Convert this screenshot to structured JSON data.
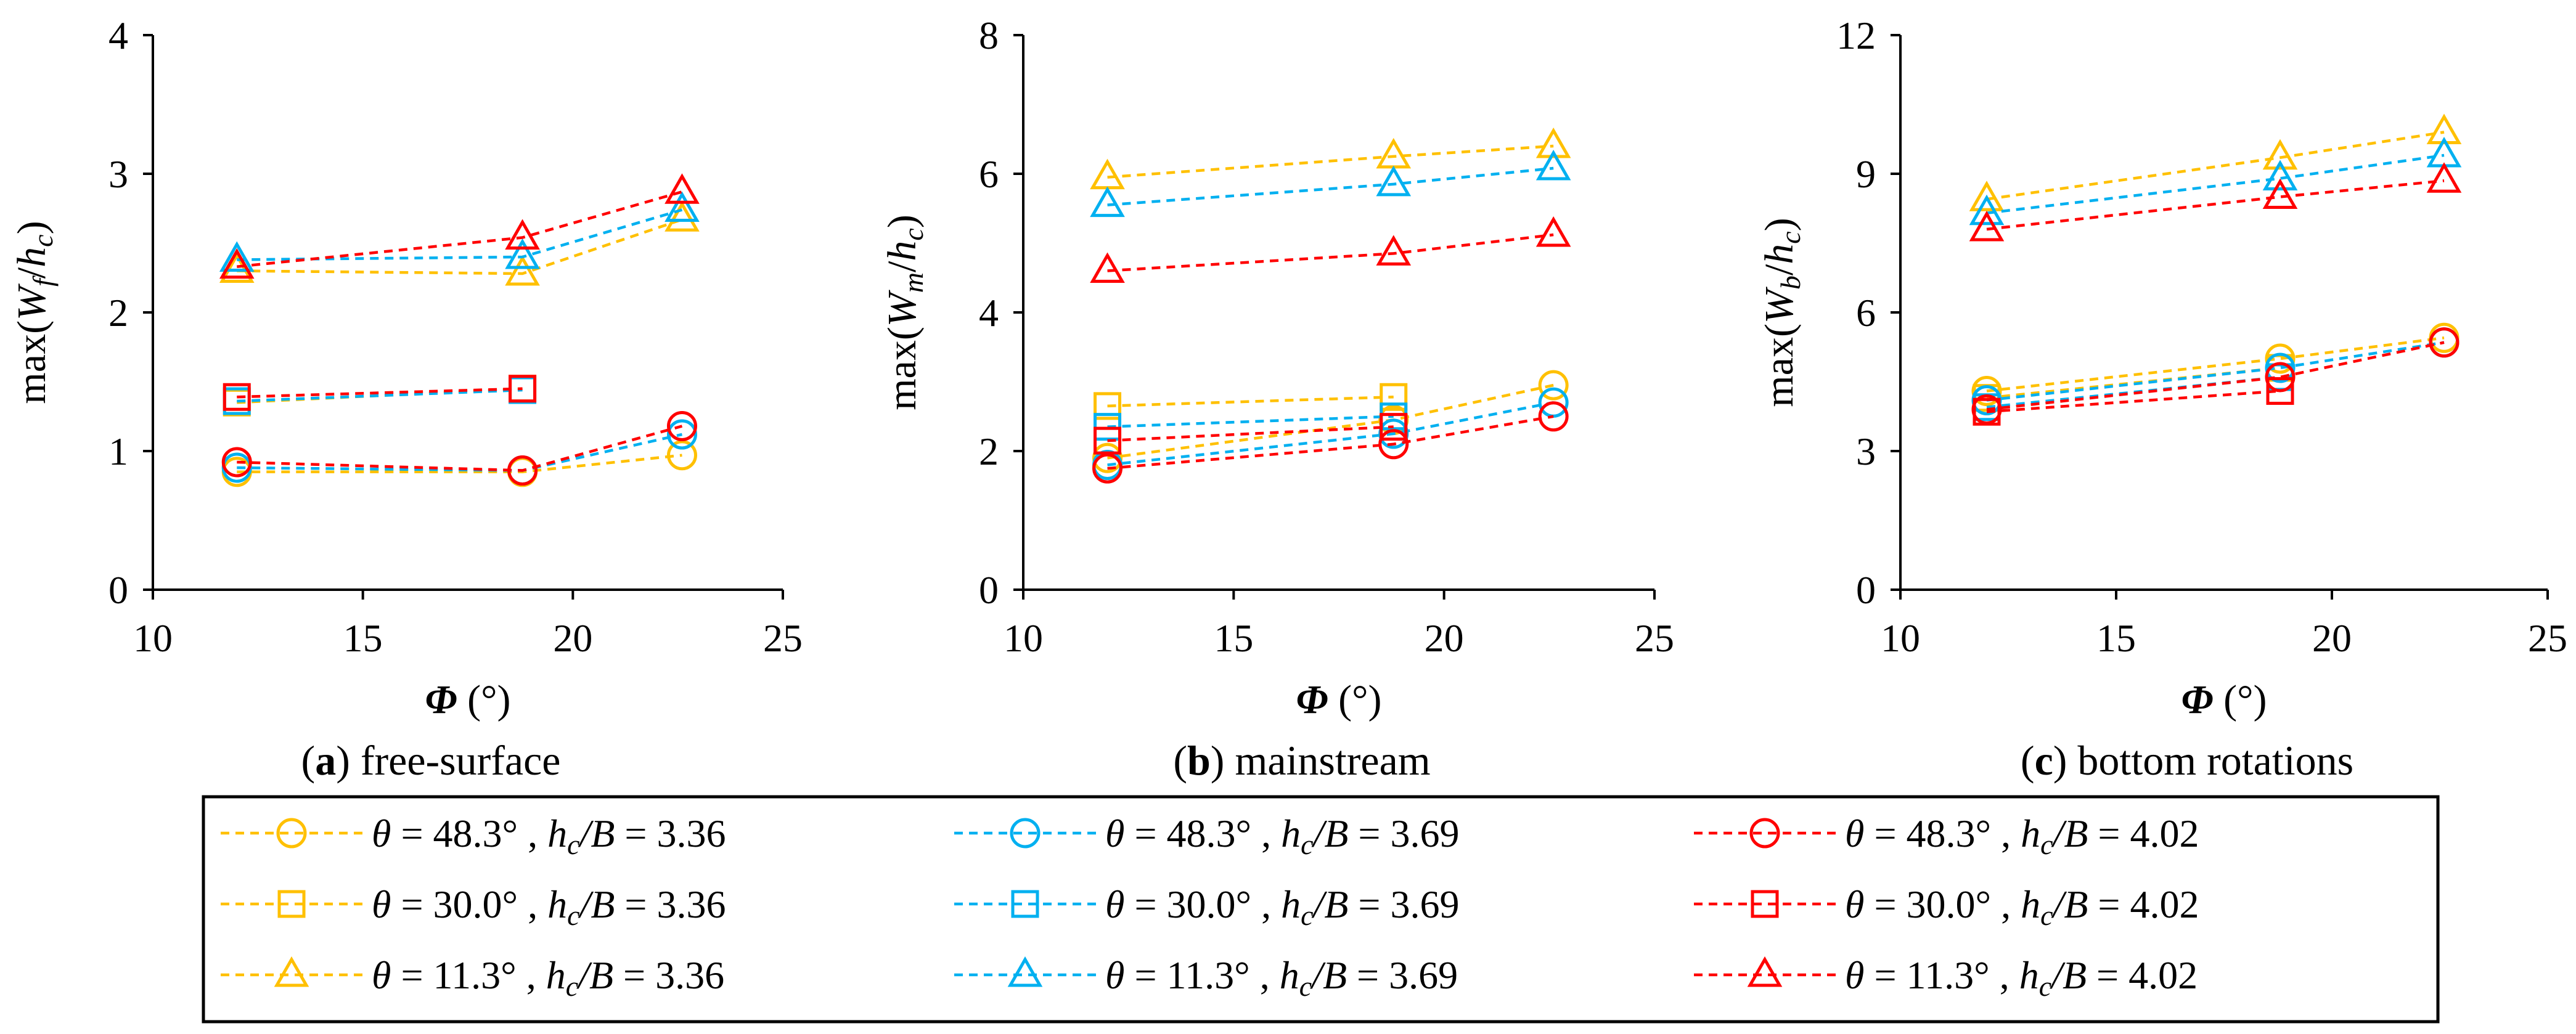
{
  "colors": {
    "yellow": "#FFC000",
    "cyan": "#00B0F0",
    "red": "#FF0000"
  },
  "chart_data": [
    {
      "type": "line",
      "title": "free-surface",
      "caption_letter": "a",
      "caption_text": " free-surface",
      "ylabel": {
        "pre": "max(",
        "v1": "W",
        "sub1": "f",
        "mid": "/",
        "v2": "h",
        "sub2": "c",
        "post": ")"
      },
      "xlabel": {
        "symbol": "Φ",
        "unit": " (°)"
      },
      "xlim": [
        10,
        25
      ],
      "xticks": [
        10,
        15,
        20,
        25
      ],
      "ylim": [
        0,
        4
      ],
      "yticks": [
        0,
        1,
        2,
        3,
        4
      ],
      "x": [
        12,
        18.8,
        22.6
      ],
      "series": [
        {
          "name": "θ = 48.3°, hc/B = 3.36",
          "color": "yellow",
          "marker": "circle",
          "values": [
            0.85,
            0.85,
            0.97
          ]
        },
        {
          "name": "θ = 30.0°, hc/B = 3.36",
          "color": "yellow",
          "marker": "square",
          "values": [
            1.35,
            1.45,
            null
          ]
        },
        {
          "name": "θ = 11.3°, hc/B = 3.36",
          "color": "yellow",
          "marker": "triangle",
          "values": [
            2.3,
            2.28,
            2.67
          ]
        },
        {
          "name": "θ = 48.3°, hc/B = 3.69",
          "color": "cyan",
          "marker": "circle",
          "values": [
            0.88,
            0.86,
            1.12
          ]
        },
        {
          "name": "θ = 30.0°, hc/B = 3.69",
          "color": "cyan",
          "marker": "square",
          "values": [
            1.36,
            1.44,
            null
          ]
        },
        {
          "name": "θ = 11.3°, hc/B = 3.69",
          "color": "cyan",
          "marker": "triangle",
          "values": [
            2.38,
            2.4,
            2.74
          ]
        },
        {
          "name": "θ = 48.3°, hc/B = 4.02",
          "color": "red",
          "marker": "circle",
          "values": [
            0.92,
            0.86,
            1.18
          ]
        },
        {
          "name": "θ = 30.0°, hc/B = 4.02",
          "color": "red",
          "marker": "square",
          "values": [
            1.39,
            1.45,
            null
          ]
        },
        {
          "name": "θ = 11.3°, hc/B = 4.02",
          "color": "red",
          "marker": "triangle",
          "values": [
            2.33,
            2.54,
            2.87
          ]
        }
      ]
    },
    {
      "type": "line",
      "title": "mainstream",
      "caption_letter": "b",
      "caption_text": " mainstream",
      "ylabel": {
        "pre": "max(",
        "v1": "W",
        "sub1": "m",
        "mid": "/",
        "v2": "h",
        "sub2": "c",
        "post": ")"
      },
      "xlabel": {
        "symbol": "Φ",
        "unit": " (°)"
      },
      "xlim": [
        10,
        25
      ],
      "xticks": [
        10,
        15,
        20,
        25
      ],
      "ylim": [
        0,
        8
      ],
      "yticks": [
        0,
        2,
        4,
        6,
        8
      ],
      "x": [
        12,
        18.8,
        22.6
      ],
      "series": [
        {
          "name": "θ = 48.3°, hc/B = 3.36",
          "color": "yellow",
          "marker": "circle",
          "values": [
            1.9,
            2.45,
            2.95
          ]
        },
        {
          "name": "θ = 30.0°, hc/B = 3.36",
          "color": "yellow",
          "marker": "square",
          "values": [
            2.65,
            2.78,
            null
          ]
        },
        {
          "name": "θ = 11.3°, hc/B = 3.36",
          "color": "yellow",
          "marker": "triangle",
          "values": [
            5.95,
            6.25,
            6.4
          ]
        },
        {
          "name": "θ = 48.3°, hc/B = 3.69",
          "color": "cyan",
          "marker": "circle",
          "values": [
            1.8,
            2.25,
            2.7
          ]
        },
        {
          "name": "θ = 30.0°, hc/B = 3.69",
          "color": "cyan",
          "marker": "square",
          "values": [
            2.35,
            2.5,
            null
          ]
        },
        {
          "name": "θ = 11.3°, hc/B = 3.69",
          "color": "cyan",
          "marker": "triangle",
          "values": [
            5.55,
            5.85,
            6.08
          ]
        },
        {
          "name": "θ = 48.3°, hc/B = 4.02",
          "color": "red",
          "marker": "circle",
          "values": [
            1.75,
            2.1,
            2.5
          ]
        },
        {
          "name": "θ = 30.0°, hc/B = 4.02",
          "color": "red",
          "marker": "square",
          "values": [
            2.15,
            2.35,
            null
          ]
        },
        {
          "name": "θ = 11.3°, hc/B = 4.02",
          "color": "red",
          "marker": "triangle",
          "values": [
            4.6,
            4.85,
            5.12
          ]
        }
      ]
    },
    {
      "type": "line",
      "title": "bottom rotations",
      "caption_letter": "c",
      "caption_text": " bottom rotations",
      "ylabel": {
        "pre": "max(",
        "v1": "W",
        "sub1": "b",
        "mid": "/",
        "v2": "h",
        "sub2": "c",
        "post": ")"
      },
      "xlabel": {
        "symbol": "Φ",
        "unit": " (°)"
      },
      "xlim": [
        10,
        25
      ],
      "xticks": [
        10,
        15,
        20,
        25
      ],
      "ylim": [
        0,
        12
      ],
      "yticks": [
        0,
        3,
        6,
        9,
        12
      ],
      "x": [
        12,
        18.8,
        22.6
      ],
      "series": [
        {
          "name": "θ = 48.3°, hc/B = 3.36",
          "color": "yellow",
          "marker": "circle",
          "values": [
            4.3,
            5.0,
            5.45
          ]
        },
        {
          "name": "θ = 30.0°, hc/B = 3.36",
          "color": "yellow",
          "marker": "square",
          "values": [
            4.15,
            4.8,
            null
          ]
        },
        {
          "name": "θ = 11.3°, hc/B = 3.36",
          "color": "yellow",
          "marker": "triangle",
          "values": [
            8.45,
            9.35,
            9.9
          ]
        },
        {
          "name": "θ = 48.3°, hc/B = 3.69",
          "color": "cyan",
          "marker": "circle",
          "values": [
            4.1,
            4.8,
            5.35
          ]
        },
        {
          "name": "θ = 30.0°, hc/B = 3.69",
          "color": "cyan",
          "marker": "square",
          "values": [
            3.95,
            4.6,
            null
          ]
        },
        {
          "name": "θ = 11.3°, hc/B = 3.69",
          "color": "cyan",
          "marker": "triangle",
          "values": [
            8.15,
            8.9,
            9.4
          ]
        },
        {
          "name": "θ = 48.3°, hc/B = 4.02",
          "color": "red",
          "marker": "circle",
          "values": [
            3.9,
            4.6,
            5.35
          ]
        },
        {
          "name": "θ = 30.0°, hc/B = 4.02",
          "color": "red",
          "marker": "square",
          "values": [
            3.85,
            4.3,
            null
          ]
        },
        {
          "name": "θ = 11.3°, hc/B = 4.02",
          "color": "red",
          "marker": "triangle",
          "values": [
            7.8,
            8.5,
            8.85
          ]
        }
      ]
    }
  ],
  "legend": {
    "items": [
      {
        "color": "yellow",
        "marker": "circle",
        "theta": "48.3",
        "ratio": "3.36"
      },
      {
        "color": "cyan",
        "marker": "circle",
        "theta": "48.3",
        "ratio": "3.69"
      },
      {
        "color": "red",
        "marker": "circle",
        "theta": "48.3",
        "ratio": "4.02"
      },
      {
        "color": "yellow",
        "marker": "square",
        "theta": "30.0",
        "ratio": "3.36"
      },
      {
        "color": "cyan",
        "marker": "square",
        "theta": "30.0",
        "ratio": "3.69"
      },
      {
        "color": "red",
        "marker": "square",
        "theta": "30.0",
        "ratio": "4.02"
      },
      {
        "color": "yellow",
        "marker": "triangle",
        "theta": "11.3",
        "ratio": "3.36"
      },
      {
        "color": "cyan",
        "marker": "triangle",
        "theta": "11.3",
        "ratio": "3.69"
      },
      {
        "color": "red",
        "marker": "triangle",
        "theta": "11.3",
        "ratio": "4.02"
      }
    ],
    "theta_symbol": "θ",
    "equals": " = ",
    "degree": "°",
    "ratio_var": "h",
    "ratio_sub": "c",
    "ratio_den": "/B"
  }
}
